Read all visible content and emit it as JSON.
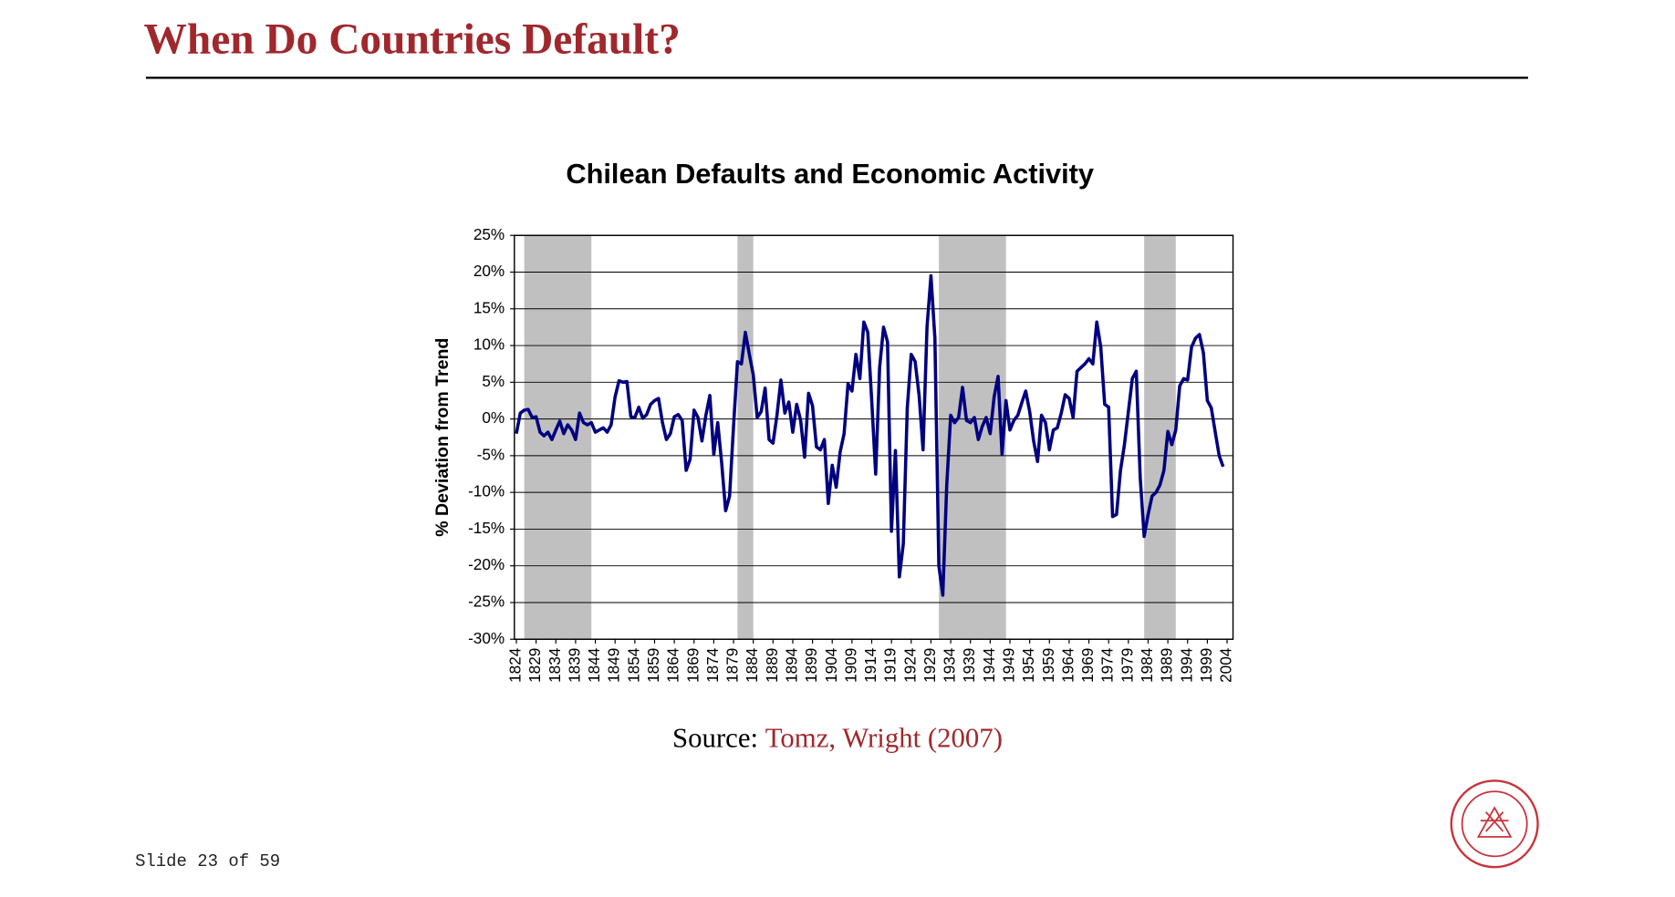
{
  "header": {
    "title": "When Do Countries Default?"
  },
  "chart_data": {
    "type": "line",
    "title": "Chilean Defaults and Economic Activity",
    "y_label": "% Deviation from Trend",
    "x": [
      1824,
      1825,
      1826,
      1827,
      1828,
      1829,
      1830,
      1831,
      1832,
      1833,
      1834,
      1835,
      1836,
      1837,
      1838,
      1839,
      1840,
      1841,
      1842,
      1843,
      1844,
      1845,
      1846,
      1847,
      1848,
      1849,
      1850,
      1851,
      1852,
      1853,
      1854,
      1855,
      1856,
      1857,
      1858,
      1859,
      1860,
      1861,
      1862,
      1863,
      1864,
      1865,
      1866,
      1867,
      1868,
      1869,
      1870,
      1871,
      1872,
      1873,
      1874,
      1875,
      1876,
      1877,
      1878,
      1879,
      1880,
      1881,
      1882,
      1883,
      1884,
      1885,
      1886,
      1887,
      1888,
      1889,
      1890,
      1891,
      1892,
      1893,
      1894,
      1895,
      1896,
      1897,
      1898,
      1899,
      1900,
      1901,
      1902,
      1903,
      1904,
      1905,
      1906,
      1907,
      1908,
      1909,
      1910,
      1911,
      1912,
      1913,
      1914,
      1915,
      1916,
      1917,
      1918,
      1919,
      1920,
      1921,
      1922,
      1923,
      1924,
      1925,
      1926,
      1927,
      1928,
      1929,
      1930,
      1931,
      1932,
      1933,
      1934,
      1935,
      1936,
      1937,
      1938,
      1939,
      1940,
      1941,
      1942,
      1943,
      1944,
      1945,
      1946,
      1947,
      1948,
      1949,
      1950,
      1951,
      1952,
      1953,
      1954,
      1955,
      1956,
      1957,
      1958,
      1959,
      1960,
      1961,
      1962,
      1963,
      1964,
      1965,
      1966,
      1967,
      1968,
      1969,
      1970,
      1971,
      1972,
      1973,
      1974,
      1975,
      1976,
      1977,
      1978,
      1979,
      1980,
      1981,
      1982,
      1983,
      1984,
      1985,
      1986,
      1987,
      1988,
      1989,
      1990,
      1991,
      1992,
      1993,
      1994,
      1995,
      1996,
      1997,
      1998,
      1999,
      2000,
      2001,
      2002,
      2003
    ],
    "series": [
      {
        "color": "#000080",
        "values": [
          -2,
          0.8,
          1.2,
          1.3,
          0.2,
          0.3,
          -1.8,
          -2.3,
          -1.8,
          -2.8,
          -1.5,
          -0.3,
          -2,
          -0.8,
          -1.5,
          -2.8,
          0.8,
          -0.5,
          -0.8,
          -0.5,
          -1.8,
          -1.5,
          -1.2,
          -1.8,
          -0.8,
          3,
          5.2,
          5,
          5.1,
          0.3,
          0.2,
          1.6,
          0.1,
          0.6,
          2,
          2.5,
          2.8,
          -0.5,
          -2.8,
          -2,
          0.3,
          0.6,
          -0.2,
          -7,
          -5.5,
          1.2,
          0.2,
          -3,
          0.5,
          3.2,
          -4.8,
          -0.5,
          -6,
          -12.5,
          -10.5,
          -1,
          7.8,
          7.5,
          11.8,
          8.8,
          6,
          0.2,
          1,
          4.2,
          -2.8,
          -3.3,
          0.5,
          5.3,
          0.8,
          2.3,
          -1.8,
          2,
          -0.2,
          -5.2,
          3.5,
          1.8,
          -3.8,
          -4.2,
          -2.8,
          -11.5,
          -6.3,
          -9.3,
          -4.5,
          -2,
          4.8,
          3.8,
          8.8,
          5.5,
          13.2,
          11.8,
          2.5,
          -7.5,
          7,
          12.5,
          10.5,
          -15.3,
          -4.3,
          -21.5,
          -17,
          1.5,
          8.8,
          7.8,
          3.2,
          -4.2,
          12.5,
          19.5,
          11,
          -20,
          -24,
          -9,
          0.5,
          -0.5,
          0.2,
          4.3,
          -0.2,
          -0.5,
          0.2,
          -2.8,
          -1,
          0.2,
          -2,
          3,
          5.8,
          -4.8,
          2.5,
          -1.5,
          -0.2,
          0.5,
          2.2,
          3.8,
          1,
          -3,
          -5.8,
          0.5,
          -0.5,
          -4.2,
          -1.5,
          -1.2,
          0.8,
          3.3,
          2.8,
          0.2,
          6.5,
          7,
          7.5,
          8.2,
          7.5,
          13.2,
          9.8,
          2,
          1.6,
          -13.3,
          -13,
          -7,
          -3.5,
          1,
          5.5,
          6.5,
          -8,
          -16,
          -13,
          -10.5,
          -10,
          -9,
          -7,
          -1.7,
          -3.5,
          -1.5,
          4.5,
          5.5,
          5.3,
          9.8,
          11,
          11.5,
          9,
          2.5,
          1.5,
          -1.8,
          -5,
          -6.5
        ]
      }
    ],
    "default_periods": [
      [
        1826,
        1843
      ],
      [
        1880,
        1884
      ],
      [
        1931,
        1948
      ],
      [
        1983,
        1991
      ]
    ],
    "band_color": "#c0c0c0",
    "xlim": [
      1823.5,
      2005.5
    ],
    "xticks": [
      1824,
      1829,
      1834,
      1839,
      1844,
      1849,
      1854,
      1859,
      1864,
      1869,
      1874,
      1879,
      1884,
      1889,
      1894,
      1899,
      1904,
      1909,
      1914,
      1919,
      1924,
      1929,
      1934,
      1939,
      1944,
      1949,
      1954,
      1959,
      1964,
      1969,
      1974,
      1979,
      1984,
      1989,
      1994,
      1999,
      2004
    ],
    "ylim": [
      -30,
      25
    ],
    "yticks": [
      {
        "value": -30,
        "label": "-30%"
      },
      {
        "value": -25,
        "label": "-25%"
      },
      {
        "value": -20,
        "label": "-20%"
      },
      {
        "value": -15,
        "label": "-15%"
      },
      {
        "value": -10,
        "label": "-10%"
      },
      {
        "value": -5,
        "label": "-5%"
      },
      {
        "value": 0,
        "label": "0%"
      },
      {
        "value": 5,
        "label": "5%"
      },
      {
        "value": 10,
        "label": "10%"
      },
      {
        "value": 15,
        "label": "15%"
      },
      {
        "value": 20,
        "label": "20%"
      },
      {
        "value": 25,
        "label": "25%"
      }
    ],
    "grid": true
  },
  "source": {
    "label": "Source:",
    "reference": "Tomz, Wright (2007)"
  },
  "footer": {
    "slide": "Slide 23 of 59"
  }
}
